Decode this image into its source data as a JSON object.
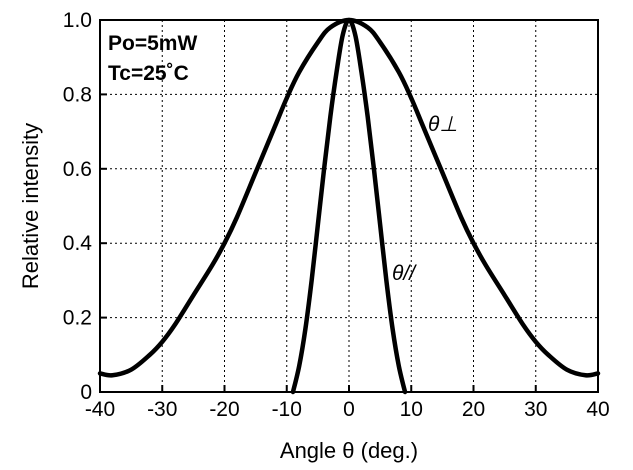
{
  "chart_data": {
    "type": "line",
    "title": "",
    "xlabel": "Angle θ (deg.)",
    "ylabel": "Relative intensity",
    "xlim": [
      -40,
      40
    ],
    "ylim": [
      0,
      1.0
    ],
    "x_ticks": [
      -40,
      -30,
      -20,
      -10,
      0,
      10,
      20,
      30,
      40
    ],
    "x_tick_labels": [
      "-40",
      "-30",
      "-20",
      "-10",
      "0",
      "10",
      "20",
      "30",
      "40"
    ],
    "y_ticks": [
      0,
      0.2,
      0.4,
      0.6,
      0.8,
      1.0
    ],
    "y_tick_labels": [
      "0",
      "0.2",
      "0.4",
      "0.6",
      "0.8",
      "1.0"
    ],
    "grid": true,
    "legend": "none",
    "annotations": [
      "Po=5mW",
      "Tc=25˚C"
    ],
    "series": [
      {
        "name": "θ⊥",
        "x": [
          -40,
          -38,
          -35,
          -32,
          -30,
          -28,
          -25,
          -22,
          -20,
          -18,
          -15,
          -12,
          -10,
          -8,
          -5,
          -3,
          0,
          3,
          5,
          8,
          10,
          12,
          15,
          18,
          20,
          22,
          25,
          28,
          30,
          32,
          35,
          38,
          40
        ],
        "y": [
          0.05,
          0.045,
          0.06,
          0.1,
          0.135,
          0.18,
          0.26,
          0.34,
          0.4,
          0.47,
          0.59,
          0.71,
          0.79,
          0.86,
          0.94,
          0.98,
          1.0,
          0.98,
          0.94,
          0.86,
          0.79,
          0.71,
          0.59,
          0.47,
          0.4,
          0.34,
          0.26,
          0.18,
          0.135,
          0.1,
          0.06,
          0.045,
          0.05
        ]
      },
      {
        "name": "θ//",
        "x": [
          -9,
          -8,
          -7,
          -6,
          -5,
          -4,
          -3,
          -2,
          -1,
          0,
          1,
          2,
          3,
          4,
          5,
          6,
          7,
          8,
          9
        ],
        "y": [
          0.0,
          0.07,
          0.17,
          0.3,
          0.45,
          0.6,
          0.74,
          0.86,
          0.96,
          1.0,
          0.96,
          0.86,
          0.74,
          0.6,
          0.45,
          0.3,
          0.17,
          0.07,
          0.0
        ]
      }
    ]
  },
  "colors": {
    "line": "#000000",
    "grid": "#000000",
    "background": "#ffffff"
  }
}
